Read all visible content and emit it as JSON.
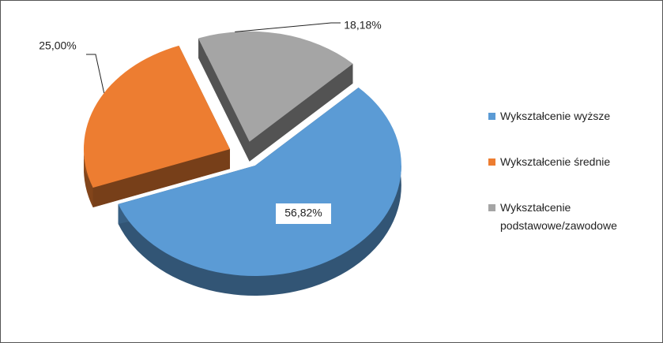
{
  "chart_data": {
    "type": "pie",
    "categories": [
      "Wykształcenie wyższe",
      "Wykształcenie średnie",
      "Wykształcenie podstawowe/zawodowe"
    ],
    "values": [
      56.82,
      25.0,
      18.18
    ],
    "value_labels": [
      "56,82%",
      "25,00%",
      "18,18%"
    ],
    "colors": [
      "#5b9bd5",
      "#ed7d31",
      "#a5a5a5"
    ],
    "legend": "right"
  }
}
